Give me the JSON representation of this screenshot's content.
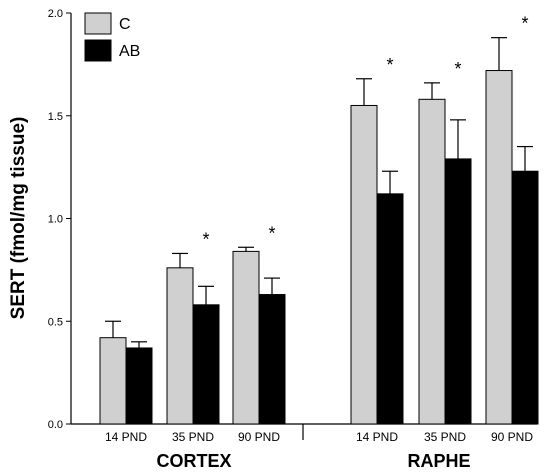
{
  "chart_data": {
    "type": "bar",
    "title": "",
    "xlabel": "",
    "ylabel": "SERT (fmol/mg tissue)",
    "ylim": [
      0,
      2.0
    ],
    "yticks": [
      "0.0",
      "0.5",
      "1.0",
      "1.5",
      "2.0"
    ],
    "groups": [
      "CORTEX",
      "RAPHE"
    ],
    "categories": [
      "14 PND",
      "35 PND",
      "90 PND",
      "14 PND",
      "35 PND",
      "90 PND"
    ],
    "category_group": [
      0,
      0,
      0,
      1,
      1,
      1
    ],
    "series": [
      {
        "name": "C",
        "color": "#d0d0d0",
        "values": [
          0.42,
          0.76,
          0.84,
          1.55,
          1.58,
          1.72
        ],
        "errors": [
          0.08,
          0.07,
          0.02,
          0.13,
          0.08,
          0.16
        ]
      },
      {
        "name": "AB",
        "color": "#000000",
        "values": [
          0.37,
          0.58,
          0.63,
          1.12,
          1.29,
          1.23
        ],
        "errors": [
          0.03,
          0.09,
          0.08,
          0.11,
          0.19,
          0.12
        ]
      }
    ],
    "significance_marker": "*",
    "significant": [
      false,
      true,
      true,
      true,
      true,
      true
    ],
    "legend_position": "top-left",
    "grid": false
  }
}
